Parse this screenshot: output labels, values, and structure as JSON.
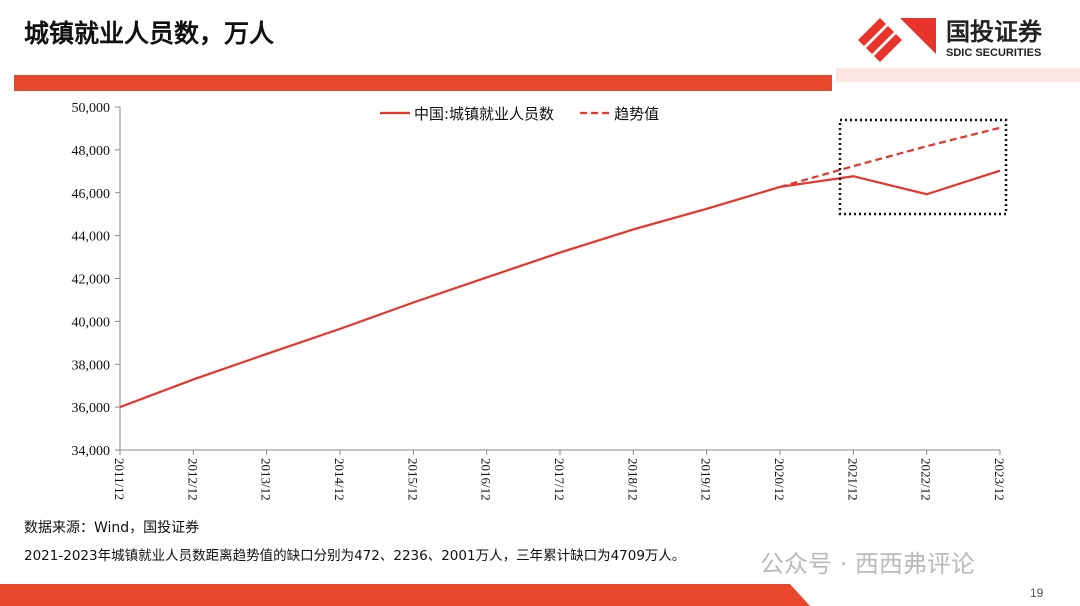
{
  "header": {
    "title": "城镇就业人员数，万人",
    "logo_cn": "国投证券",
    "logo_en": "SDIC SECURITIES"
  },
  "chart_data": {
    "type": "line",
    "categories": [
      "2011/12",
      "2012/12",
      "2013/12",
      "2014/12",
      "2015/12",
      "2016/12",
      "2017/12",
      "2018/12",
      "2019/12",
      "2020/12",
      "2021/12",
      "2022/12",
      "2023/12"
    ],
    "series": [
      {
        "name": "中国:城镇就业人员数",
        "color": "#e8342b",
        "style": "solid",
        "values": [
          36000,
          37290,
          38480,
          39650,
          40880,
          42050,
          43210,
          44290,
          45250,
          46270,
          46770,
          45930,
          47030
        ]
      },
      {
        "name": "趋势值",
        "color": "#e8342b",
        "style": "dashed",
        "values": [
          null,
          null,
          null,
          null,
          null,
          null,
          null,
          null,
          null,
          46270,
          47240,
          48170,
          49030
        ]
      }
    ],
    "ylim": [
      34000,
      50000
    ],
    "yticks": [
      {
        "value": 34000,
        "label": "34,000"
      },
      {
        "value": 36000,
        "label": "36,000"
      },
      {
        "value": 38000,
        "label": "38,000"
      },
      {
        "value": 40000,
        "label": "40,000"
      },
      {
        "value": 42000,
        "label": "42,000"
      },
      {
        "value": 44000,
        "label": "44,000"
      },
      {
        "value": 46000,
        "label": "46,000"
      },
      {
        "value": 48000,
        "label": "48,000"
      },
      {
        "value": 50000,
        "label": "50,000"
      }
    ],
    "grid": false
  },
  "footer": {
    "source": "数据来源：Wind，国投证券",
    "note": "2021-2023年城镇就业人员数距离趋势值的缺口分别为472、2236、2001万人，三年累计缺口为4709万人。",
    "watermark": "公众号 · 西西弗评论",
    "page": "19"
  }
}
